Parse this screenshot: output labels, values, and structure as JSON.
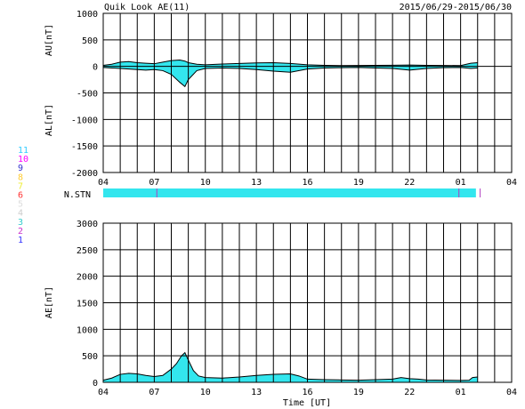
{
  "header": {
    "title": "Quik Look AE(11)",
    "date_range": "2015/06/29-2015/06/30"
  },
  "colors": {
    "fill": "#33e6ee",
    "line": "#000000",
    "grid": "#000000",
    "marker": "#b040c0"
  },
  "legend": {
    "items": [
      {
        "label": "11",
        "color": "#33ccff"
      },
      {
        "label": "10",
        "color": "#ff00ff"
      },
      {
        "label": "9",
        "color": "#3333cc"
      },
      {
        "label": "8",
        "color": "#ffcc33"
      },
      {
        "label": "7",
        "color": "#eeee33"
      },
      {
        "label": "6",
        "color": "#ff3333"
      },
      {
        "label": "5",
        "color": "#dddddd"
      },
      {
        "label": "4",
        "color": "#cccccc"
      },
      {
        "label": "3",
        "color": "#33cccc"
      },
      {
        "label": "2",
        "color": "#cc33cc"
      },
      {
        "label": "1",
        "color": "#3333ff"
      }
    ]
  },
  "xlabel": "Time [UT]",
  "stn_label": "N.STN",
  "chart_data": [
    {
      "type": "area",
      "panel": "AU/AL",
      "ylabel_upper": "AU[nT]",
      "ylabel_lower": "AL[nT]",
      "ylim": [
        -2000,
        1000
      ],
      "y_ticks": [
        1000,
        500,
        0,
        -500,
        -1000,
        -1500,
        -2000
      ],
      "y_tick_labels": [
        "1000",
        "500",
        "0",
        "-500",
        "-1000",
        "-1500",
        "-2000"
      ],
      "xlim": [
        4,
        28
      ],
      "x_tick_labels": [
        "04",
        "07",
        "10",
        "13",
        "16",
        "19",
        "22",
        "01",
        "04"
      ],
      "grid": true,
      "au": {
        "x": [
          4.0,
          4.5,
          5.0,
          5.5,
          6.0,
          6.5,
          7.0,
          7.5,
          8.0,
          8.5,
          8.8,
          9.0,
          9.5,
          10.0,
          11.0,
          12.0,
          13.0,
          14.0,
          15.0,
          16.0,
          17.0,
          18.0,
          19.0,
          20.0,
          21.0,
          22.0,
          23.0,
          24.0,
          25.0,
          25.6,
          26.0
        ],
        "y": [
          20,
          40,
          80,
          90,
          70,
          60,
          50,
          80,
          110,
          120,
          100,
          70,
          40,
          30,
          45,
          55,
          65,
          70,
          55,
          30,
          20,
          15,
          18,
          20,
          22,
          25,
          20,
          18,
          15,
          60,
          70
        ]
      },
      "al": {
        "x": [
          4.0,
          4.5,
          5.0,
          5.5,
          6.0,
          6.5,
          7.0,
          7.5,
          8.0,
          8.5,
          8.8,
          9.0,
          9.5,
          10.0,
          11.0,
          12.0,
          13.0,
          14.0,
          15.0,
          16.0,
          17.0,
          18.0,
          19.0,
          20.0,
          21.0,
          22.0,
          23.0,
          24.0,
          25.0,
          25.6,
          26.0
        ],
        "y": [
          -20,
          -30,
          -40,
          -50,
          -60,
          -70,
          -60,
          -80,
          -150,
          -300,
          -380,
          -250,
          -80,
          -40,
          -30,
          -40,
          -60,
          -90,
          -110,
          -50,
          -30,
          -25,
          -20,
          -30,
          -40,
          -70,
          -40,
          -25,
          -20,
          -40,
          -30
        ]
      }
    },
    {
      "type": "area",
      "panel": "AE",
      "ylabel": "AE[nT]",
      "ylim": [
        0,
        3000
      ],
      "y_ticks": [
        3000,
        2500,
        2000,
        1500,
        1000,
        500,
        0
      ],
      "y_tick_labels": [
        "3000",
        "2500",
        "2000",
        "1500",
        "1000",
        "500",
        "0"
      ],
      "xlim": [
        4,
        28
      ],
      "x_tick_labels": [
        "04",
        "07",
        "10",
        "13",
        "16",
        "19",
        "22",
        "01",
        "04"
      ],
      "grid": true,
      "ae": {
        "x": [
          4.0,
          4.5,
          5.0,
          5.5,
          6.0,
          6.5,
          7.0,
          7.5,
          8.0,
          8.3,
          8.6,
          8.8,
          9.0,
          9.3,
          9.6,
          10.0,
          11.0,
          12.0,
          13.0,
          14.0,
          15.0,
          15.5,
          16.0,
          17.0,
          18.0,
          19.0,
          20.0,
          21.0,
          21.5,
          22.0,
          22.5,
          23.0,
          24.0,
          25.0,
          25.5,
          25.7,
          26.0
        ],
        "y": [
          40,
          80,
          150,
          170,
          160,
          130,
          110,
          130,
          250,
          350,
          500,
          560,
          420,
          220,
          120,
          90,
          80,
          100,
          130,
          150,
          160,
          120,
          60,
          50,
          45,
          40,
          50,
          60,
          90,
          70,
          60,
          45,
          40,
          35,
          40,
          90,
          100
        ]
      }
    },
    {
      "type": "table",
      "panel": "N.STN",
      "x_end": 25.9,
      "markers": [
        7.15,
        24.9,
        26.15
      ]
    }
  ]
}
